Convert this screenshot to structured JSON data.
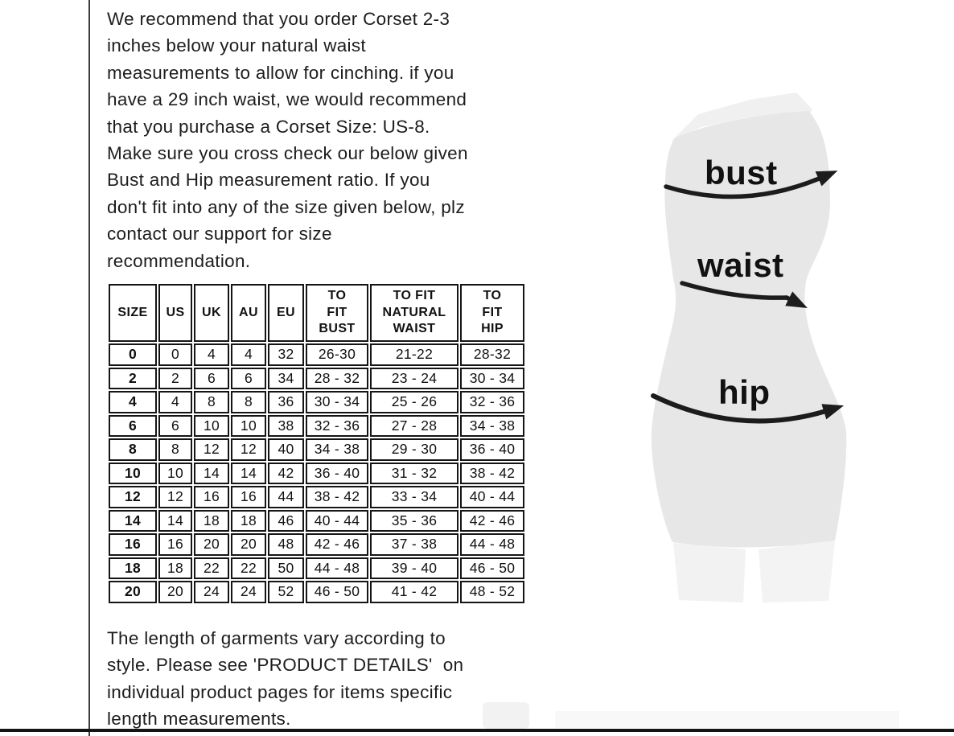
{
  "intro_paragraph": {
    "lines": [
      "We recommend that you order Corset 2-3",
      "inches below your natural waist",
      "measurements to allow for cinching. if you",
      "have a 29 inch waist, we would recommend",
      "that you purchase a Corset Size: US-8.",
      "Make sure you cross check our below given",
      "Bust and Hip measurement ratio. If you",
      "don't fit into any of the size given below, plz",
      "contact our support for size",
      "recommendation."
    ]
  },
  "size_table": {
    "headers": [
      "SIZE",
      "US",
      "UK",
      "AU",
      "EU",
      [
        "TO",
        "FIT",
        "BUST"
      ],
      [
        "TO FIT",
        "NATURAL",
        "WAIST"
      ],
      [
        "TO",
        "FIT",
        "HIP"
      ]
    ],
    "rows": [
      [
        "0",
        "0",
        "4",
        "4",
        "32",
        "26-30",
        "21-22",
        "28-32"
      ],
      [
        "2",
        "2",
        "6",
        "6",
        "34",
        "28 - 32",
        "23 - 24",
        "30 - 34"
      ],
      [
        "4",
        "4",
        "8",
        "8",
        "36",
        "30 - 34",
        "25 - 26",
        "32 - 36"
      ],
      [
        "6",
        "6",
        "10",
        "10",
        "38",
        "32 - 36",
        "27 - 28",
        "34 - 38"
      ],
      [
        "8",
        "8",
        "12",
        "12",
        "40",
        "34 - 38",
        "29 - 30",
        "36 - 40"
      ],
      [
        "10",
        "10",
        "14",
        "14",
        "42",
        "36 - 40",
        "31 - 32",
        "38 - 42"
      ],
      [
        "12",
        "12",
        "16",
        "16",
        "44",
        "38 - 42",
        "33 - 34",
        "40 - 44"
      ],
      [
        "14",
        "14",
        "18",
        "18",
        "46",
        "40 - 44",
        "35 - 36",
        "42 - 46"
      ],
      [
        "16",
        "16",
        "20",
        "20",
        "48",
        "42 - 46",
        "37 - 38",
        "44 - 48"
      ],
      [
        "18",
        "18",
        "22",
        "22",
        "50",
        "44 - 48",
        "39 - 40",
        "46 - 50"
      ],
      [
        "20",
        "20",
        "24",
        "24",
        "52",
        "46 - 50",
        "41 - 42",
        "48 - 52"
      ]
    ]
  },
  "diagram": {
    "bust_label": "bust",
    "waist_label": "waist",
    "hip_label": "hip"
  },
  "footer_paragraph": {
    "lines": [
      "The length of garments vary according to",
      "style. Please see 'PRODUCT DETAILS'  on",
      "individual product pages for items specific",
      "length measurements."
    ]
  },
  "colors": {
    "text": "#1d1d1d",
    "table_border": "#151515",
    "silhouette_fill": "#e7e7e7",
    "arrow": "#1c1c1c"
  }
}
